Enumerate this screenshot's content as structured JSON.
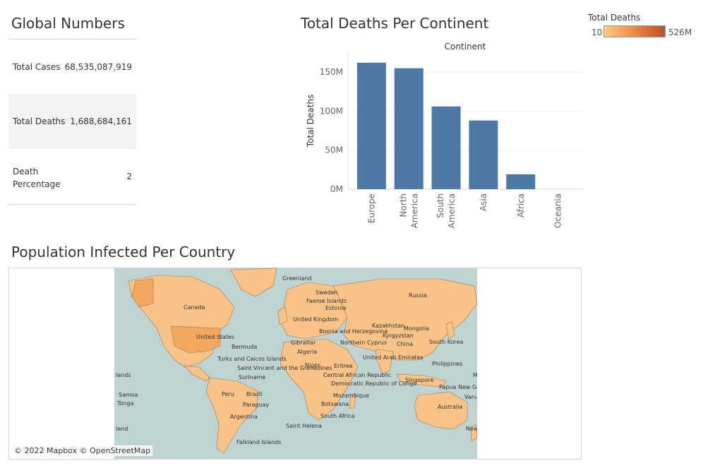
{
  "global": {
    "title": "Global Numbers",
    "rows": [
      {
        "label": "Total Cases",
        "value": "68,535,087,919"
      },
      {
        "label": "Total Deaths",
        "value": "1,688,684,161"
      },
      {
        "label": "Death Percentage",
        "value": "2"
      }
    ]
  },
  "bar_title": "Total Deaths Per Continent",
  "legend": {
    "title": "Total Deaths",
    "min": "10",
    "max": "526M",
    "color_low": "#fcc98a",
    "color_high": "#b5532c"
  },
  "map": {
    "title": "Population Infected Per Country",
    "attribution": "© 2022 Mapbox © OpenStreetMap",
    "land_color": "#f9c287",
    "ocean_color": "#bfd3d2",
    "labels": [
      "Greenland",
      "Canada",
      "United States",
      "Bermuda",
      "Turks and Caicos Islands",
      "Saint Vincent and the Grenadines",
      "Suriname",
      "Brazil",
      "Peru",
      "Paraguay",
      "Argentina",
      "Falkland Islands",
      "Faeroe Islands",
      "Sweden",
      "Estonia",
      "United Kingdom",
      "Bosnia and Herzegovina",
      "Gibraltar",
      "Algeria",
      "Northern Cyprus",
      "Niger",
      "Eritrea",
      "United Arab Emirates",
      "Central African Republic",
      "Democratic Republic of Congo",
      "Mozambique",
      "Botswana",
      "South Africa",
      "Saint Helena",
      "Russia",
      "Kazakhstan",
      "Mongolia",
      "Kyrgyzstan",
      "China",
      "South Korea",
      "Philippines",
      "Singapore",
      "Papua New Guinea",
      "Australia",
      "Marshall Isla",
      "Vanuatu",
      "New Zeala",
      "Samoa",
      "Tonga",
      "lands",
      "land"
    ]
  },
  "chart_data": {
    "type": "bar",
    "title": "Total Deaths Per Continent",
    "header": "Continent",
    "ylabel": "Total Deaths",
    "categories": [
      "Europe",
      "North America",
      "South America",
      "Asia",
      "Africa",
      "Oceania"
    ],
    "values": [
      162000000,
      155000000,
      106000000,
      88000000,
      19000000,
      0
    ],
    "ylim": [
      0,
      170000000
    ],
    "yticks": [
      {
        "v": 0,
        "label": "0M"
      },
      {
        "v": 50000000,
        "label": "50M"
      },
      {
        "v": 100000000,
        "label": "100M"
      },
      {
        "v": 150000000,
        "label": "150M"
      }
    ],
    "bar_color": "#4e79a7",
    "grid": true
  }
}
